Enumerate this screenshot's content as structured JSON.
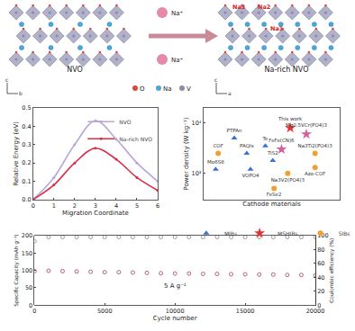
{
  "diagram": {
    "left_label": "NVO",
    "right_label": "Na-rich NVO",
    "ion_labels": [
      "Na⁺",
      "Na⁺"
    ],
    "site_labels": [
      "Na3",
      "Na2",
      "Na1"
    ],
    "legend": [
      {
        "name": "O",
        "color": "#e0443a"
      },
      {
        "name": "Na",
        "color": "#4aa8d8"
      },
      {
        "name": "V",
        "color": "#8c8ca8"
      }
    ],
    "axes_left": [
      "c",
      "b"
    ],
    "axes_right": [
      "c",
      "a"
    ]
  },
  "chart_data": [
    {
      "type": "line",
      "x_label": "Migration Coordinate",
      "y_label": "Relative Energy (eV)",
      "x": [
        0,
        1,
        2,
        3,
        4,
        5,
        6
      ],
      "series": [
        {
          "name": "NVO",
          "color": "#b9a7d6",
          "values": [
            0,
            0.12,
            0.3,
            0.43,
            0.33,
            0.2,
            0.1
          ]
        },
        {
          "name": "Na-rich NVO",
          "color": "#d9304a",
          "values": [
            0,
            0.08,
            0.2,
            0.28,
            0.22,
            0.12,
            0.05
          ]
        }
      ],
      "xlim": [
        0,
        6
      ],
      "xticks": [
        0,
        1,
        2,
        3,
        4,
        5,
        6
      ],
      "ylim": [
        0,
        0.5
      ],
      "yticks": [
        {
          "value": 0,
          "label": "0.0"
        },
        {
          "value": 0.1,
          "label": "0.1"
        },
        {
          "value": 0.2,
          "label": "0.2"
        },
        {
          "value": 0.3,
          "label": "0.3"
        },
        {
          "value": 0.4,
          "label": "0.4"
        },
        {
          "value": 0.5,
          "label": "0.5"
        }
      ],
      "legend": "upper right",
      "marker": "circle",
      "line_style": "solid"
    },
    {
      "type": "scatter",
      "x_label": "Cathode materials",
      "y_label": "Power density (W kg⁻¹)",
      "log": "y",
      "tick_labels": "y",
      "legend": "bottom",
      "xlim": [
        0,
        11
      ],
      "ylim": [
        300,
        20000
      ],
      "yticks": [
        {
          "value": 1000,
          "label": "10³"
        },
        {
          "value": 10000,
          "label": "10⁴"
        }
      ],
      "series": [
        {
          "name": "MIBs",
          "color": "#3a6fd8",
          "marker": "triangle",
          "x": [
            1,
            2.5,
            3.5,
            3.8,
            5,
            5.6
          ],
          "values": [
            1200,
            5000,
            2500,
            1200,
            3500,
            1800
          ],
          "labels": [
            "Mo6S8",
            "PTPAn",
            "PAQIs",
            "VOPO4",
            "Te",
            "TiS2"
          ]
        },
        {
          "name": "MSHIBs",
          "color": "#e8312f",
          "colors": [
            "#e8312f",
            "#d45fa0",
            "#d45fa0"
          ],
          "marker": "star",
          "x": [
            7,
            8.3,
            6.3
          ],
          "values": [
            8000,
            6000,
            3000
          ],
          "labels": [
            "This work",
            "Mg0.5VCr(PO4)3",
            "FeFe(CN)6"
          ]
        },
        {
          "name": "SIBs",
          "color": "#f0a030",
          "marker": "circle",
          "x": [
            1.2,
            6.8,
            9,
            9,
            5.7
          ],
          "values": [
            2500,
            1000,
            2500,
            1300,
            500
          ],
          "labels": [
            "COF",
            "Na3V2(PO4)3",
            "Na3Ti2(PO4)3",
            "Azo-COF",
            "FeSe2"
          ]
        }
      ]
    },
    {
      "type": "scatter",
      "x_label": "Cycle number",
      "y_label": "Specific Capacity (mAh g⁻¹)",
      "y2_label": "Coulombic efficiency (%)",
      "annotation": "5 A g⁻¹",
      "x": [
        0,
        1000,
        2000,
        3000,
        4000,
        5000,
        6000,
        7000,
        8000,
        9000,
        10000,
        11000,
        12000,
        13000,
        14000,
        15000,
        16000,
        17000,
        18000,
        19000,
        20000
      ],
      "series": [
        {
          "color": "#b05f8f",
          "marker": "circle-open",
          "values": [
            98,
            99,
            98,
            97,
            96,
            95,
            95,
            94,
            93,
            92,
            91,
            91,
            90,
            90,
            89,
            89,
            88,
            88,
            87,
            87,
            86
          ]
        },
        {
          "color": "#9a9a9a",
          "marker": "circle-open",
          "axis": "y2",
          "values": [
            92,
            98,
            98,
            98,
            98,
            98,
            98,
            98,
            98,
            98,
            98,
            98,
            98,
            98,
            98,
            98,
            98,
            98,
            98,
            98,
            98
          ]
        }
      ],
      "xlim": [
        0,
        20000
      ],
      "xticks": [
        0,
        5000,
        10000,
        15000,
        20000
      ],
      "ylim": [
        0,
        200
      ],
      "yticks": [
        0,
        50,
        100,
        150,
        200
      ],
      "y2lim": [
        0,
        100
      ],
      "y2ticks": [
        0,
        20,
        40,
        60,
        80,
        100
      ]
    }
  ]
}
